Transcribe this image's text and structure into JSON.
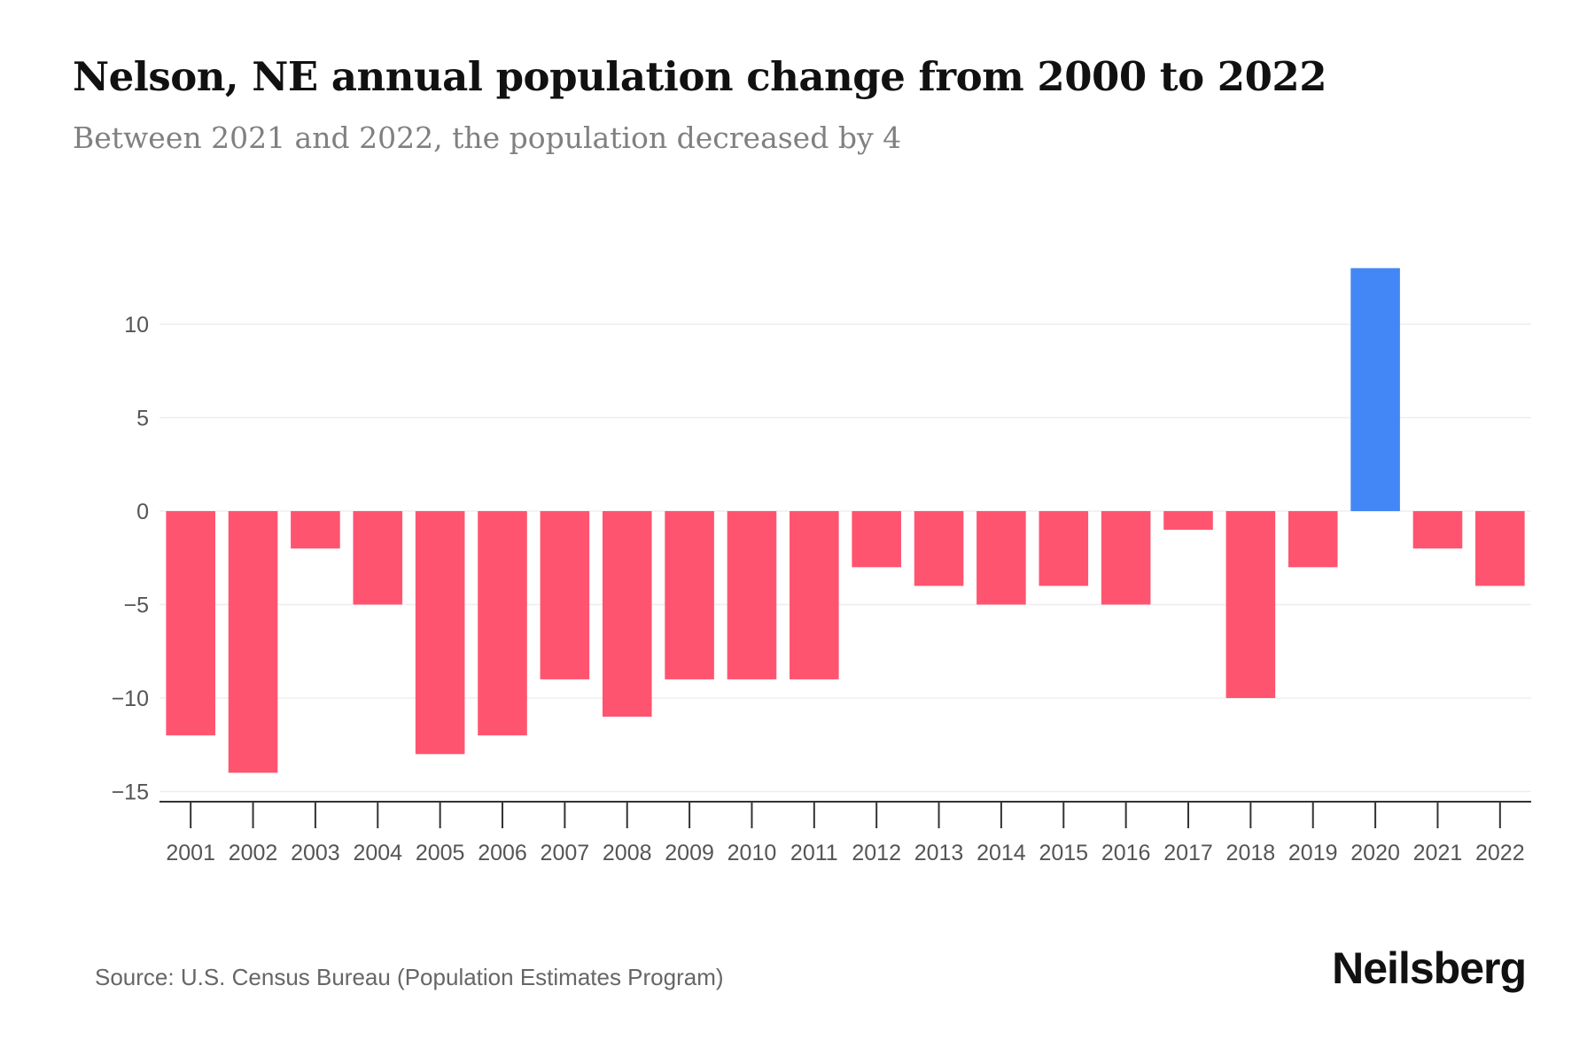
{
  "header": {
    "title": "Nelson, NE annual population change from 2000 to 2022",
    "subtitle": "Between 2021 and 2022, the population decreased by 4"
  },
  "footer": {
    "source": "Source: U.S. Census Bureau (Population Estimates Program)",
    "brand": "Neilsberg"
  },
  "colors": {
    "positive": "#4287f5",
    "negative": "#ff5470",
    "grid": "#eeeeee",
    "axis": "#333333"
  },
  "chart_data": {
    "type": "bar",
    "title": "Nelson, NE annual population change from 2000 to 2022",
    "xlabel": "",
    "ylabel": "",
    "categories": [
      "2001",
      "2002",
      "2003",
      "2004",
      "2005",
      "2006",
      "2007",
      "2008",
      "2009",
      "2010",
      "2011",
      "2012",
      "2013",
      "2014",
      "2015",
      "2016",
      "2017",
      "2018",
      "2019",
      "2020",
      "2021",
      "2022"
    ],
    "values": [
      -12,
      -14,
      -2,
      -5,
      -13,
      -12,
      -9,
      -11,
      -9,
      -9,
      -9,
      -3,
      -4,
      -5,
      -4,
      -5,
      -1,
      -10,
      -3,
      13,
      -2,
      -4
    ],
    "yticks": [
      10,
      5,
      0,
      -5,
      -10,
      -15
    ],
    "ytick_labels": [
      "10",
      "5",
      "0",
      "−5",
      "−10",
      "−15"
    ],
    "ylim": [
      -15.5,
      13
    ],
    "grid": true,
    "legend": "none"
  }
}
